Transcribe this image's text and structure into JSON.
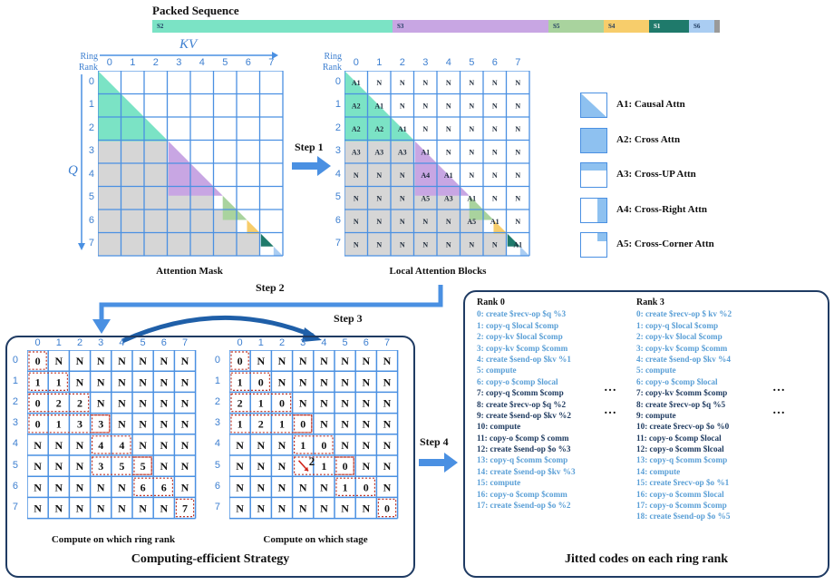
{
  "packed": {
    "title": "Packed Sequence",
    "segments": [
      {
        "label": "S2",
        "color": "#7be3c5"
      },
      {
        "label": "S3",
        "color": "#c8a6e3"
      },
      {
        "label": "S5",
        "color": "#a9d39e"
      },
      {
        "label": "S4",
        "color": "#f7cd6b"
      },
      {
        "label": "S1",
        "color": "#1f7a6b"
      },
      {
        "label": "S6",
        "color": "#aacdf2"
      },
      {
        "label": "",
        "color": "#9a9a9a"
      }
    ]
  },
  "mask": {
    "kv_label": "KV",
    "q_label": "Q",
    "ring_rank_label": "Ring Rank",
    "ticks": [
      "0",
      "1",
      "2",
      "3",
      "4",
      "5",
      "6",
      "7"
    ],
    "caption": "Attention Mask"
  },
  "local": {
    "ring_rank_label": "Ring Rank",
    "ticks": [
      "0",
      "1",
      "2",
      "3",
      "4",
      "5",
      "6",
      "7"
    ],
    "caption": "Local Attention Blocks",
    "cells": [
      [
        "A1",
        "N",
        "N",
        "N",
        "N",
        "N",
        "N",
        "N"
      ],
      [
        "A2",
        "A1",
        "N",
        "N",
        "N",
        "N",
        "N",
        "N"
      ],
      [
        "A2",
        "A2",
        "A1",
        "N",
        "N",
        "N",
        "N",
        "N"
      ],
      [
        "A3",
        "A3",
        "A3",
        "A1",
        "N",
        "N",
        "N",
        "N"
      ],
      [
        "N",
        "N",
        "N",
        "A4",
        "A1",
        "N",
        "N",
        "N"
      ],
      [
        "N",
        "N",
        "N",
        "A5",
        "A3",
        "A1",
        "N",
        "N"
      ],
      [
        "N",
        "N",
        "N",
        "N",
        "N",
        "A5",
        "A1",
        "N"
      ],
      [
        "N",
        "N",
        "N",
        "N",
        "N",
        "N",
        "N",
        "A1"
      ]
    ]
  },
  "steps": {
    "step1": "Step 1",
    "step2": "Step 2",
    "step3": "Step 3",
    "step4": "Step 4"
  },
  "legend": [
    {
      "label": "A1: Causal Attn"
    },
    {
      "label": "A2: Cross Attn"
    },
    {
      "label": "A3: Cross-UP Attn"
    },
    {
      "label": "A4: Cross-Right Attn"
    },
    {
      "label": "A5: Cross-Corner Attn"
    }
  ],
  "strategy": {
    "title": "Computing-efficient Strategy",
    "ticks": [
      "0",
      "1",
      "2",
      "3",
      "4",
      "5",
      "6",
      "7"
    ],
    "grid1": {
      "caption": "Compute on which ring rank",
      "cells": [
        [
          "0",
          "N",
          "N",
          "N",
          "N",
          "N",
          "N",
          "N"
        ],
        [
          "1",
          "1",
          "N",
          "N",
          "N",
          "N",
          "N",
          "N"
        ],
        [
          "0",
          "2",
          "2",
          "N",
          "N",
          "N",
          "N",
          "N"
        ],
        [
          "0",
          "1",
          "3",
          "3",
          "N",
          "N",
          "N",
          "N"
        ],
        [
          "N",
          "N",
          "N",
          "4",
          "4",
          "N",
          "N",
          "N"
        ],
        [
          "N",
          "N",
          "N",
          "3",
          "5",
          "5",
          "N",
          "N"
        ],
        [
          "N",
          "N",
          "N",
          "N",
          "N",
          "6",
          "6",
          "N"
        ],
        [
          "N",
          "N",
          "N",
          "N",
          "N",
          "N",
          "N",
          "7"
        ]
      ]
    },
    "grid2": {
      "caption": "Compute on which stage",
      "cells": [
        [
          "0",
          "N",
          "N",
          "N",
          "N",
          "N",
          "N",
          "N"
        ],
        [
          "1",
          "0",
          "N",
          "N",
          "N",
          "N",
          "N",
          "N"
        ],
        [
          "2",
          "1",
          "0",
          "N",
          "N",
          "N",
          "N",
          "N"
        ],
        [
          "1",
          "2",
          "1",
          "0",
          "N",
          "N",
          "N",
          "N"
        ],
        [
          "N",
          "N",
          "N",
          "1",
          "0",
          "N",
          "N",
          "N"
        ],
        [
          "N",
          "N",
          "N",
          "",
          "1",
          "0",
          "N",
          "N"
        ],
        [
          "N",
          "N",
          "N",
          "N",
          "N",
          "1",
          "0",
          "N"
        ],
        [
          "N",
          "N",
          "N",
          "N",
          "N",
          "N",
          "N",
          "0"
        ]
      ],
      "annot": "2"
    }
  },
  "jit": {
    "title": "Jitted codes on each ring rank",
    "ellipsis": "…",
    "rank0": {
      "title": "Rank 0",
      "lines": [
        {
          "t": "0: create $recv-op $q %3",
          "c": "#5a9fd6"
        },
        {
          "t": "1: copy-q $local $comp",
          "c": "#5a9fd6"
        },
        {
          "t": "2: copy-kv $local $comp",
          "c": "#5a9fd6"
        },
        {
          "t": "3: copy-kv $comp $comm",
          "c": "#5a9fd6"
        },
        {
          "t": "4: create $send-op $kv %1",
          "c": "#5a9fd6"
        },
        {
          "t": "5: compute",
          "c": "#5a9fd6"
        },
        {
          "t": "6: copy-o $comp $local",
          "c": "#5a9fd6"
        },
        {
          "t": "7: copy-q $comm $comp",
          "c": "#1e3a5f"
        },
        {
          "t": "8: create $recv-op $q %2",
          "c": "#1e3a5f"
        },
        {
          "t": "9: create $send-op $kv %2",
          "c": "#1e3a5f"
        },
        {
          "t": "10: compute",
          "c": "#1e3a5f"
        },
        {
          "t": "11: copy-o $comp $ comm",
          "c": "#1e3a5f"
        },
        {
          "t": "12: create $send-op $o %3",
          "c": "#1e3a5f"
        },
        {
          "t": "13: copy-q $comm $comp",
          "c": "#5a9fd6"
        },
        {
          "t": "14: create $send-op $kv %3",
          "c": "#5a9fd6"
        },
        {
          "t": "15: compute",
          "c": "#5a9fd6"
        },
        {
          "t": "16: copy-o $comp $comm",
          "c": "#5a9fd6"
        },
        {
          "t": "17: create $send-op $o %2",
          "c": "#5a9fd6"
        }
      ]
    },
    "rank3": {
      "title": "Rank 3",
      "lines": [
        {
          "t": "0: create $recv-op $ kv %2",
          "c": "#5a9fd6"
        },
        {
          "t": "1: copy-q $local $comp",
          "c": "#5a9fd6"
        },
        {
          "t": "2: copy-kv $local $comp",
          "c": "#5a9fd6"
        },
        {
          "t": "3: copy-kv $comp $comm",
          "c": "#5a9fd6"
        },
        {
          "t": "4: create $send-op $kv %4",
          "c": "#5a9fd6"
        },
        {
          "t": "5: compute",
          "c": "#5a9fd6"
        },
        {
          "t": "6: copy-o $comp $local",
          "c": "#5a9fd6"
        },
        {
          "t": "7: copy-kv $comm $comp",
          "c": "#1e3a5f"
        },
        {
          "t": "8: create $recv-op $q %5",
          "c": "#1e3a5f"
        },
        {
          "t": "9: compute",
          "c": "#1e3a5f"
        },
        {
          "t": "10: create $recv-op $o %0",
          "c": "#1e3a5f"
        },
        {
          "t": "11: copy-o $comp $local",
          "c": "#1e3a5f"
        },
        {
          "t": "12: copy-o $comm $lcoal",
          "c": "#1e3a5f"
        },
        {
          "t": "13: copy-q $comm $comp",
          "c": "#5a9fd6"
        },
        {
          "t": "14: compute",
          "c": "#5a9fd6"
        },
        {
          "t": "15: create $recv-op $o %1",
          "c": "#5a9fd6"
        },
        {
          "t": "16: copy-o $comm $local",
          "c": "#5a9fd6"
        },
        {
          "t": "17: copy-o $comm $comp",
          "c": "#5a9fd6"
        },
        {
          "t": "18: create $send-op $o %5",
          "c": "#5a9fd6"
        }
      ]
    }
  }
}
